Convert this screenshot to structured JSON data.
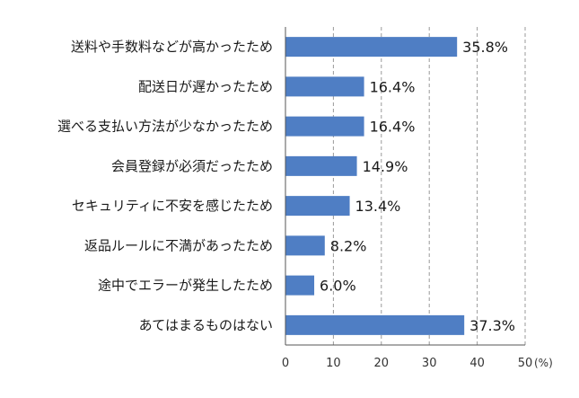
{
  "chart_data": {
    "type": "bar",
    "orientation": "horizontal",
    "categories": [
      "送料や手数料などが高かったため",
      "配送日が遅かったため",
      "選べる支払い方法が少なかったため",
      "会員登録が必須だったため",
      "セキュリティに不安を感じたため",
      "返品ルールに不満があったため",
      "途中でエラーが発生したため",
      "あてはまるものはない"
    ],
    "values": [
      35.8,
      16.4,
      16.4,
      14.9,
      13.4,
      8.2,
      6.0,
      37.3
    ],
    "value_labels": [
      "35.8%",
      "16.4%",
      "16.4%",
      "14.9%",
      "13.4%",
      "8.2%",
      "6.0%",
      "37.3%"
    ],
    "xlim": [
      0,
      50
    ],
    "x_ticks": [
      0,
      10,
      20,
      30,
      40,
      50
    ],
    "x_tick_labels": [
      "0",
      "10",
      "20",
      "30",
      "40",
      "50"
    ],
    "x_unit": "(%)",
    "title": "",
    "xlabel": "",
    "ylabel": "",
    "grid": "vertical dashed",
    "legend": "none",
    "bar_color": "#4f7ec4"
  }
}
